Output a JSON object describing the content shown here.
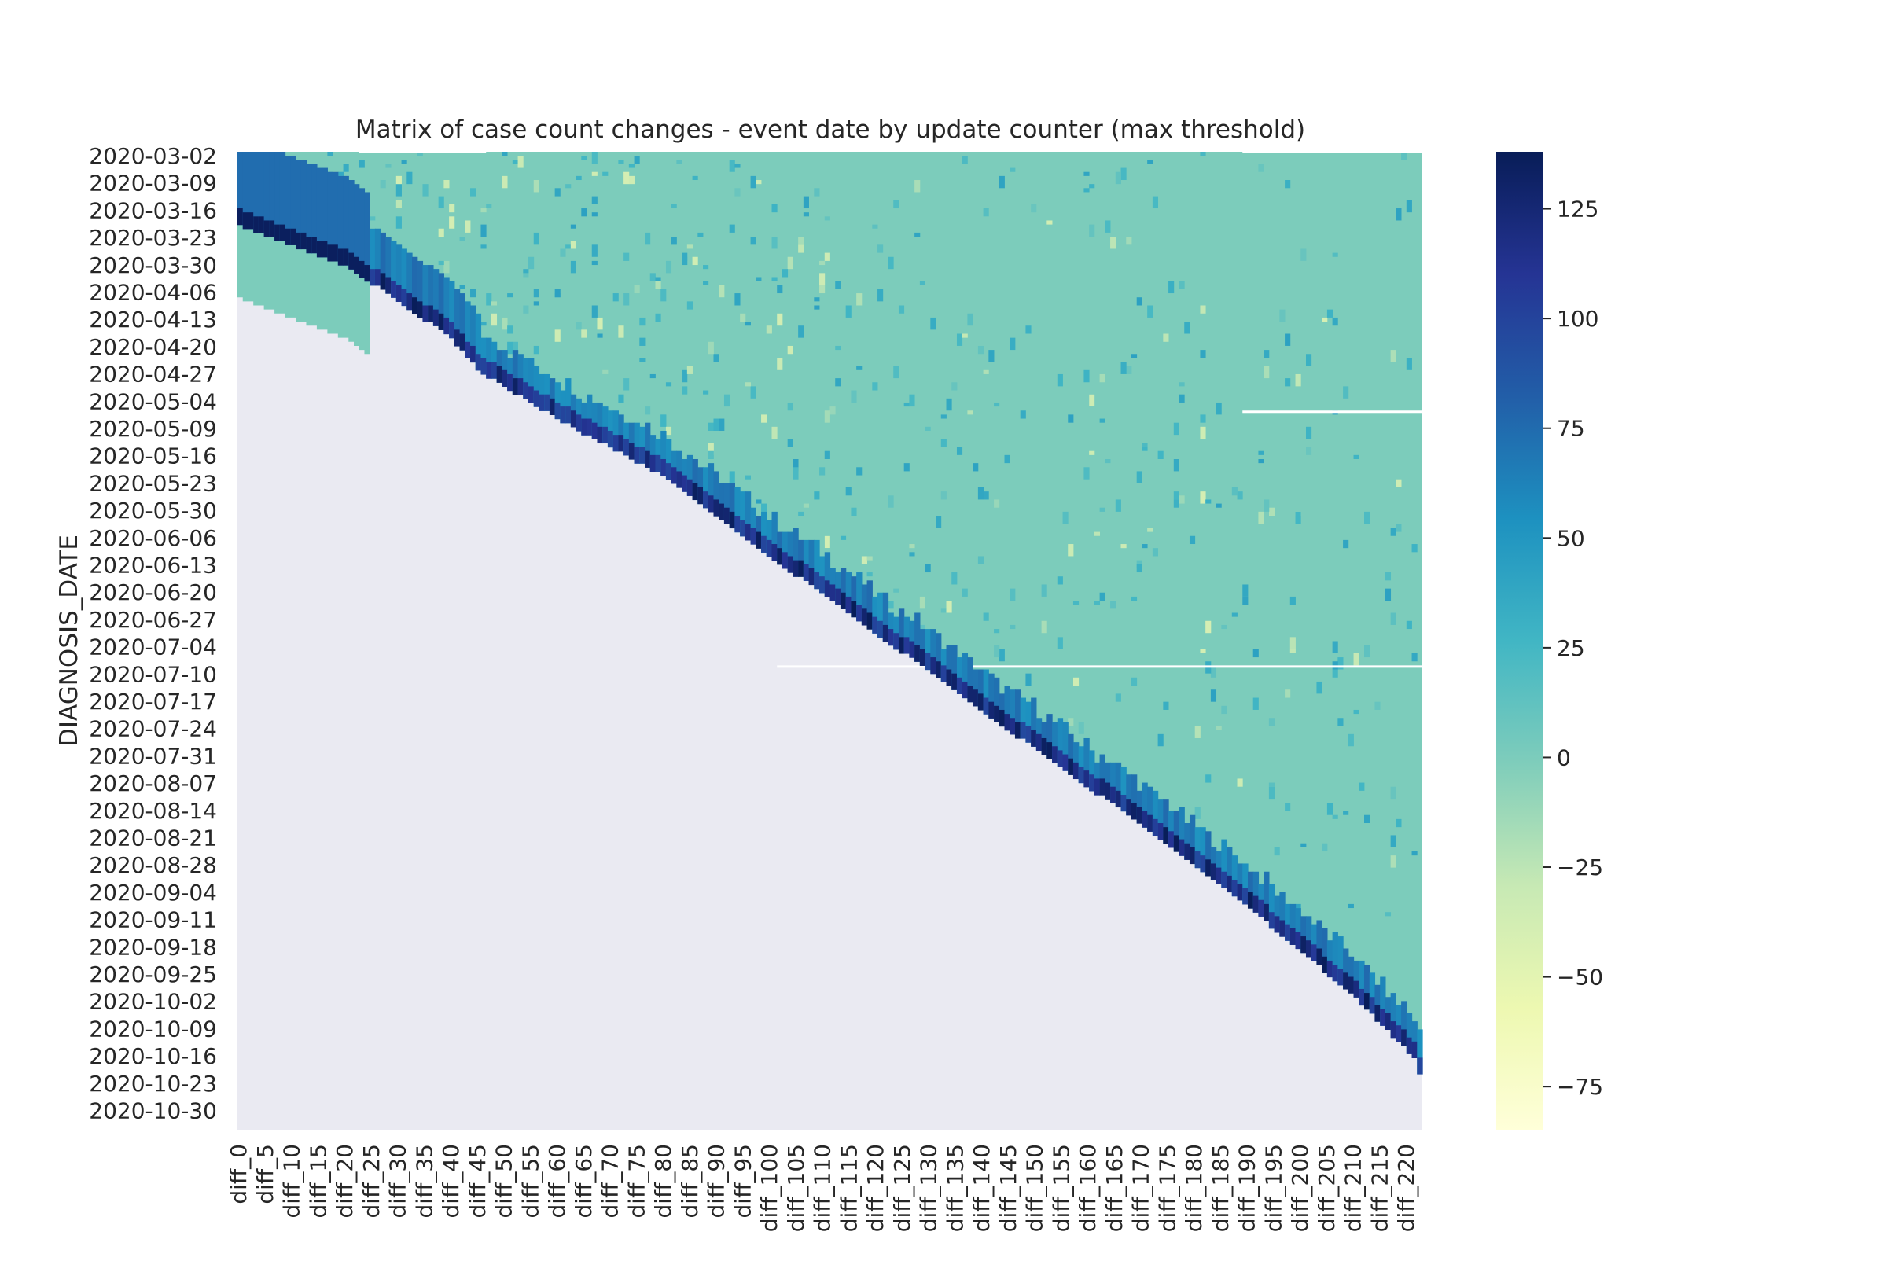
{
  "chart_data": {
    "type": "heatmap",
    "title": "Matrix of case count changes - event date by update counter (max threshold)",
    "ylabel": "DIAGNOSIS_DATE",
    "xlabel": "",
    "x_tick_labels": [
      "diff_0",
      "diff_5",
      "diff_10",
      "diff_15",
      "diff_20",
      "diff_25",
      "diff_30",
      "diff_35",
      "diff_40",
      "diff_45",
      "diff_50",
      "diff_55",
      "diff_60",
      "diff_65",
      "diff_70",
      "diff_75",
      "diff_80",
      "diff_85",
      "diff_90",
      "diff_95",
      "diff_100",
      "diff_105",
      "diff_110",
      "diff_115",
      "diff_120",
      "diff_125",
      "diff_130",
      "diff_135",
      "diff_140",
      "diff_145",
      "diff_150",
      "diff_155",
      "diff_160",
      "diff_165",
      "diff_170",
      "diff_175",
      "diff_180",
      "diff_185",
      "diff_190",
      "diff_195",
      "diff_200",
      "diff_205",
      "diff_210",
      "diff_215",
      "diff_220"
    ],
    "y_tick_labels": [
      "2020-03-02",
      "2020-03-09",
      "2020-03-16",
      "2020-03-23",
      "2020-03-30",
      "2020-04-06",
      "2020-04-13",
      "2020-04-20",
      "2020-04-27",
      "2020-05-04",
      "2020-05-09",
      "2020-05-16",
      "2020-05-23",
      "2020-05-30",
      "2020-06-06",
      "2020-06-13",
      "2020-06-20",
      "2020-06-27",
      "2020-07-04",
      "2020-07-10",
      "2020-07-17",
      "2020-07-24",
      "2020-07-31",
      "2020-08-07",
      "2020-08-14",
      "2020-08-21",
      "2020-08-28",
      "2020-09-04",
      "2020-09-11",
      "2020-09-18",
      "2020-09-25",
      "2020-10-02",
      "2020-10-09",
      "2020-10-16",
      "2020-10-23",
      "2020-10-30"
    ],
    "n_columns": 224,
    "n_rows": 242,
    "color_scale": {
      "colormap": "YlGnBu",
      "vmin": -85,
      "vmax": 138,
      "ticks": [
        125,
        100,
        75,
        50,
        25,
        0,
        -25,
        -50,
        -75
      ],
      "tick_labels": [
        "125",
        "100",
        "75",
        "50",
        "25",
        "0",
        "−25",
        "−50",
        "−75"
      ]
    },
    "baseline_value": 0,
    "missing_region": "lower-left triangle (no data, axes background)",
    "description_of_values": "Cells are near 0 across most of the matrix; a diagonal band of large positive changes (up to about 138) follows the data frontier; sparse small positive and negative cells elsewhere."
  },
  "colors": {
    "axes_background": "#eaeaf2",
    "baseline_cell": "#7bcbbc",
    "grid_line": "#ffffff",
    "text": "#262626"
  }
}
